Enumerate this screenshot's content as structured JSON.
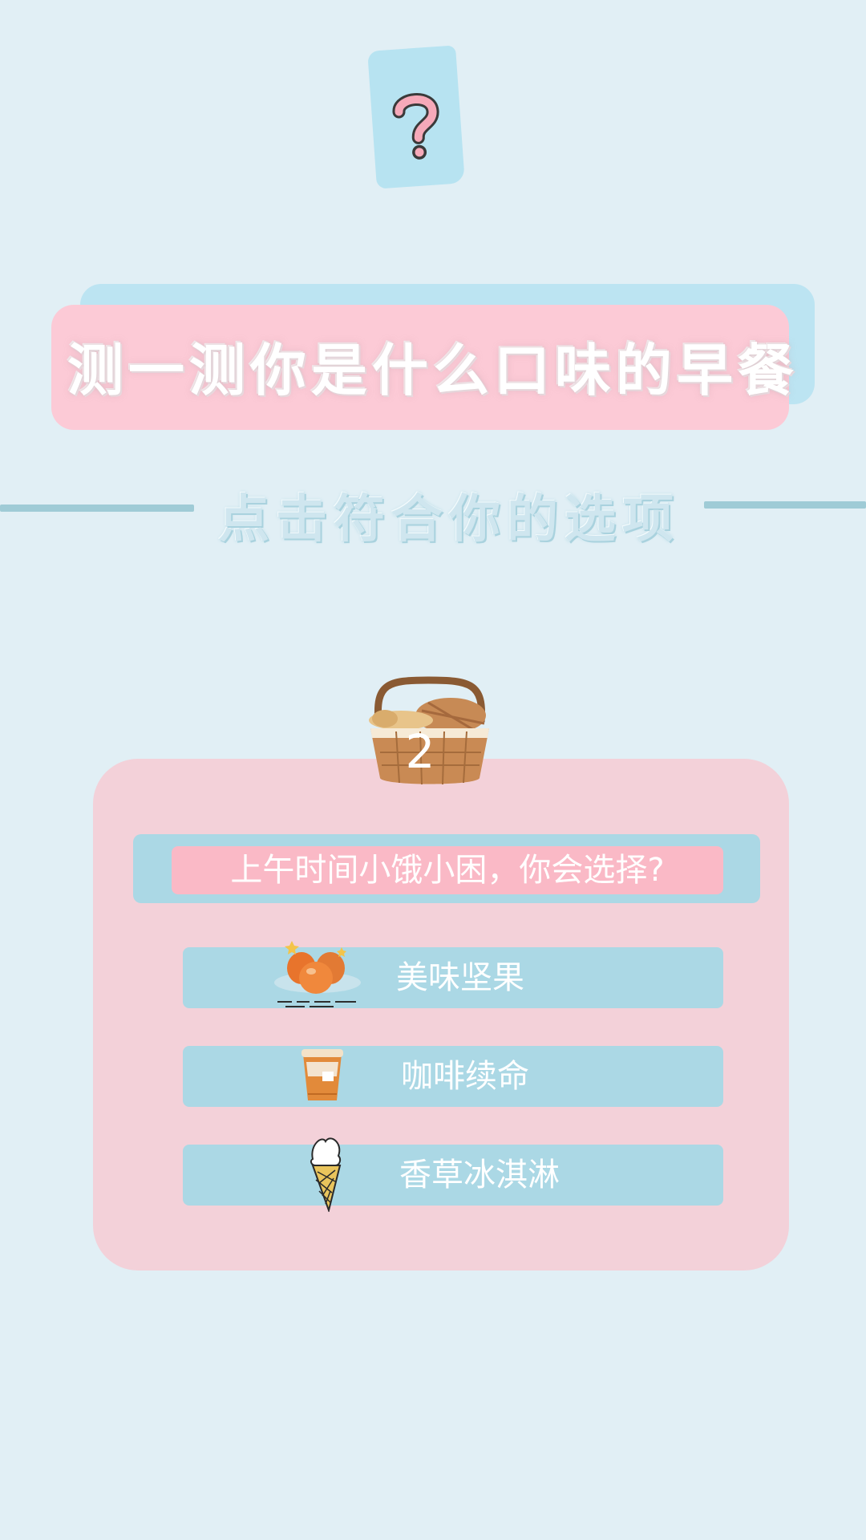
{
  "header": {
    "title": "测一测你是什么口味的早餐",
    "subtitle": "点击符合你的选项"
  },
  "quiz": {
    "number": "2",
    "question": "上午时间小饿小困，你会选择?",
    "options": [
      {
        "label": "美味坚果",
        "icon": "nuts-icon"
      },
      {
        "label": "咖啡续命",
        "icon": "coffee-cup-icon"
      },
      {
        "label": "香草冰淇淋",
        "icon": "ice-cream-cone-icon"
      }
    ]
  },
  "colors": {
    "background": "#e1eff5",
    "pink": "#fccad6",
    "blue": "#abd8e5",
    "card": "#f3d1d9"
  }
}
